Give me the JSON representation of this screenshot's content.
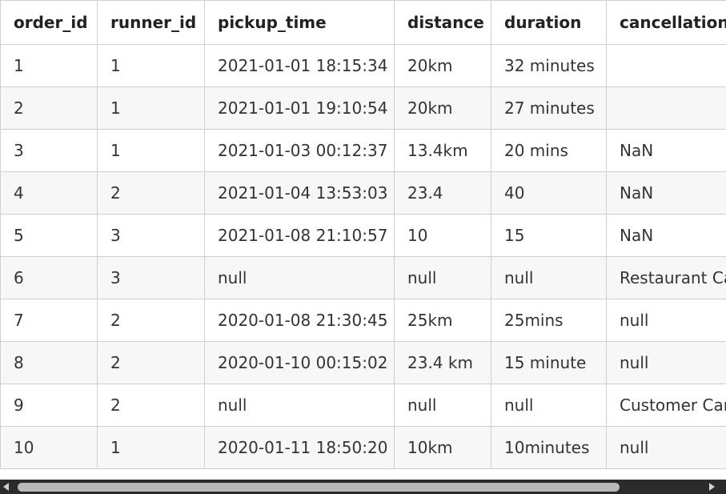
{
  "table": {
    "columns": [
      "order_id",
      "runner_id",
      "pickup_time",
      "distance",
      "duration",
      "cancellation"
    ],
    "rows": [
      [
        "1",
        "1",
        "2021-01-01 18:15:34",
        "20km",
        "32 minutes",
        ""
      ],
      [
        "2",
        "1",
        "2021-01-01 19:10:54",
        "20km",
        "27 minutes",
        ""
      ],
      [
        "3",
        "1",
        "2021-01-03 00:12:37",
        "13.4km",
        "20 mins",
        "NaN"
      ],
      [
        "4",
        "2",
        "2021-01-04 13:53:03",
        "23.4",
        "40",
        "NaN"
      ],
      [
        "5",
        "3",
        "2021-01-08 21:10:57",
        "10",
        "15",
        "NaN"
      ],
      [
        "6",
        "3",
        "null",
        "null",
        "null",
        "Restaurant Cancellation"
      ],
      [
        "7",
        "2",
        "2020-01-08 21:30:45",
        "25km",
        "25mins",
        "null"
      ],
      [
        "8",
        "2",
        "2020-01-10 00:15:02",
        "23.4 km",
        "15 minute",
        "null"
      ],
      [
        "9",
        "2",
        "null",
        "null",
        "null",
        "Customer Cancellation"
      ],
      [
        "10",
        "1",
        "2020-01-11 18:50:20",
        "10km",
        "10minutes",
        "null"
      ]
    ]
  },
  "scrollbar": {
    "left_arrow_icon": "chevron-left-icon",
    "right_arrow_icon": "chevron-right-icon",
    "position_fraction": 0.0
  },
  "colors": {
    "scrollbar_track": "#2b2b2b",
    "scrollbar_thumb": "#b9b9b9",
    "row_alt": "#f7f7f7",
    "border": "#cfcfcf"
  }
}
